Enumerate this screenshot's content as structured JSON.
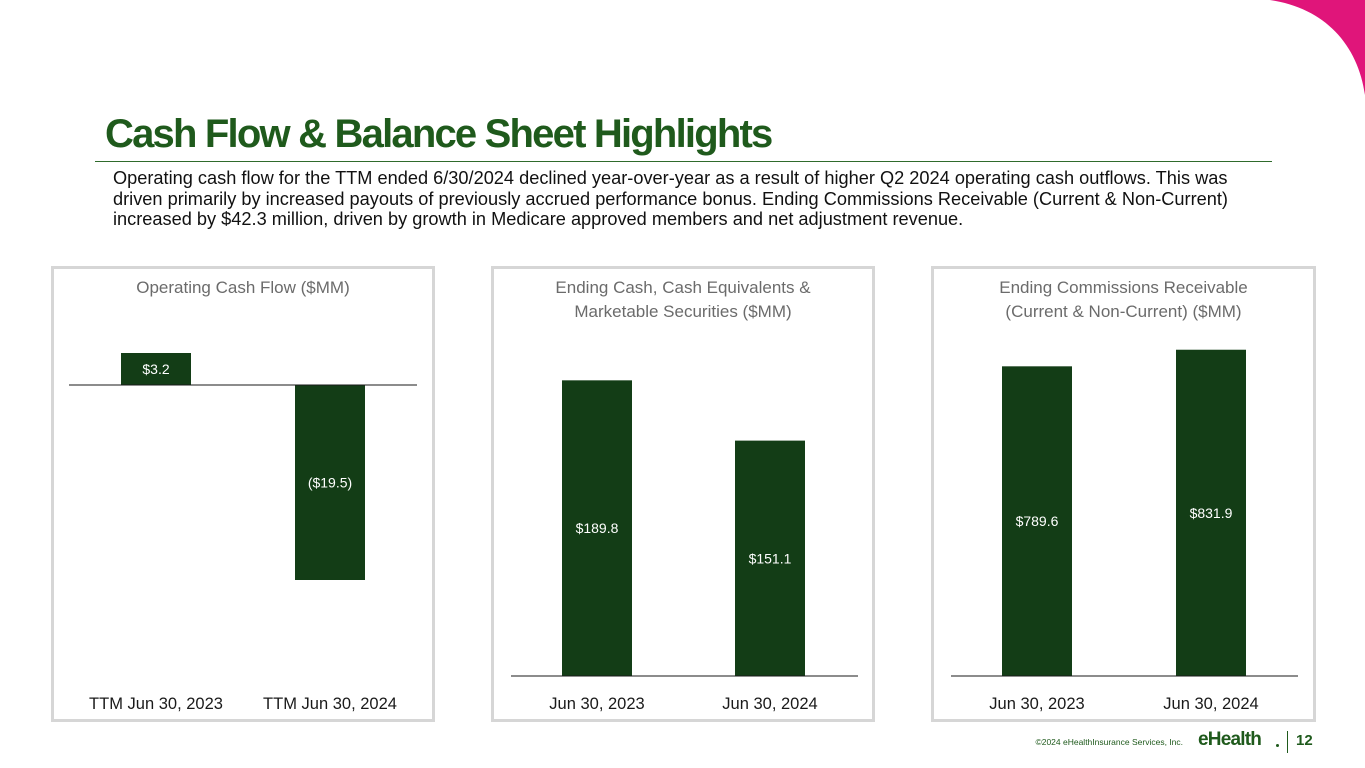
{
  "page": {
    "title": "Cash Flow & Balance Sheet Highlights",
    "intro": "Operating cash flow for the TTM ended 6/30/2024 declined year-over-year as a result of higher Q2 2024 operating cash outflows. This was driven primarily by increased payouts of previously accrued performance bonus. Ending Commissions Receivable (Current & Non-Current) increased by $42.3 million, driven by growth in Medicare approved members and net adjustment revenue.",
    "copyright": "©2024 eHealthInsurance Services, Inc.",
    "logo_text": "eHealth",
    "page_number": "12"
  },
  "colors": {
    "bar": "#133d16",
    "title": "#1f5a1c",
    "label_on_bar": "#ffffff",
    "axis": "#1a1a1a",
    "accent_corner": "#e0157a"
  },
  "chart_data": [
    {
      "type": "bar",
      "title_lines": [
        "Operating Cash Flow ($MM)"
      ],
      "categories": [
        "TTM Jun 30, 2023",
        "TTM Jun 30, 2024"
      ],
      "values": [
        3.2,
        -19.5
      ],
      "labels": [
        "$3.2",
        "($19.5)"
      ],
      "ylim": [
        -23,
        4.2
      ],
      "xlabel": "",
      "ylabel": "",
      "grid": false,
      "legend": "none"
    },
    {
      "type": "bar",
      "title_lines": [
        "Ending Cash, Cash Equivalents &",
        "Marketable Securities ($MM)"
      ],
      "categories": [
        "Jun 30, 2023",
        "Jun 30, 2024"
      ],
      "values": [
        189.8,
        151.1
      ],
      "labels": [
        "$189.8",
        "$151.1"
      ],
      "ylim": [
        0,
        199
      ],
      "xlabel": "",
      "ylabel": "",
      "grid": false,
      "legend": "none"
    },
    {
      "type": "bar",
      "title_lines": [
        "Ending Commissions Receivable",
        "(Current & Non-Current) ($MM)"
      ],
      "categories": [
        "Jun 30, 2023",
        "Jun 30, 2024"
      ],
      "values": [
        789.6,
        831.9
      ],
      "labels": [
        "$789.6",
        "$831.9"
      ],
      "ylim": [
        0,
        872
      ],
      "xlabel": "",
      "ylabel": "",
      "grid": false,
      "legend": "none"
    }
  ]
}
